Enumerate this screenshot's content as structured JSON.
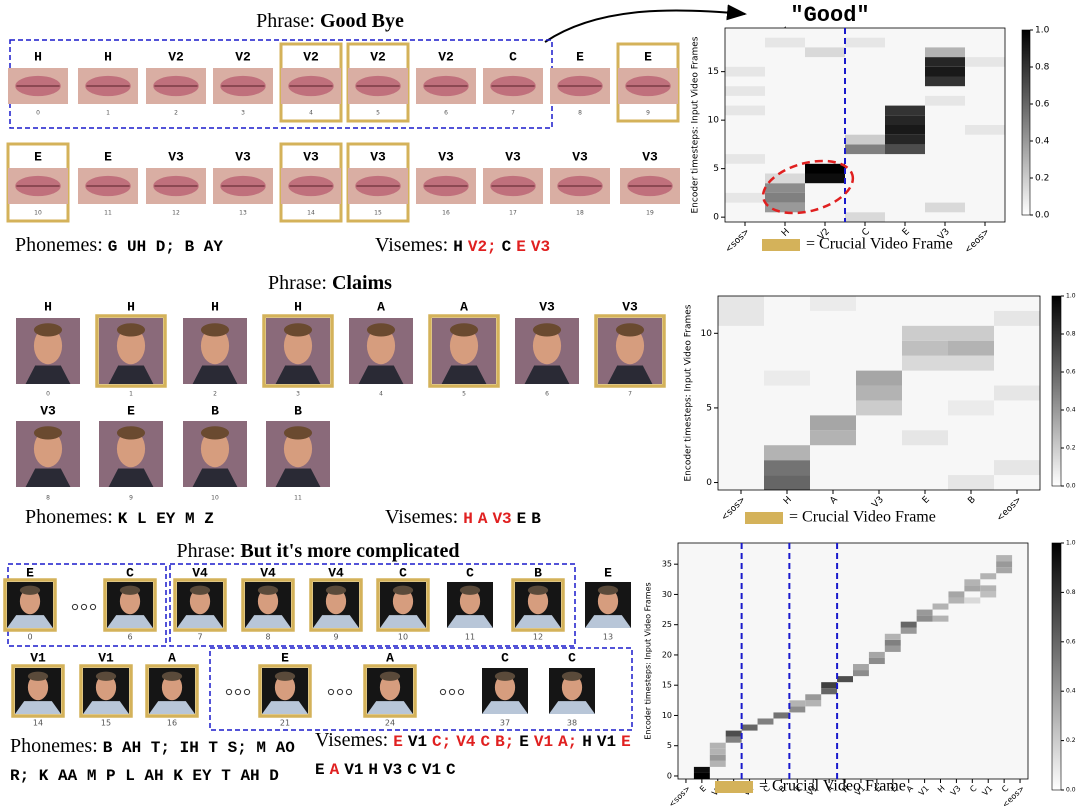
{
  "panels": [
    {
      "phrase_label": "Phrase:",
      "phrase": "Good Bye",
      "frame_rows": [
        [
          {
            "viseme": "H",
            "index": 0,
            "crucial": false
          },
          {
            "viseme": "H",
            "index": 1,
            "crucial": false
          },
          {
            "viseme": "V2",
            "index": 2,
            "crucial": false
          },
          {
            "viseme": "V2",
            "index": 3,
            "crucial": false
          },
          {
            "viseme": "V2",
            "index": 4,
            "crucial": true
          },
          {
            "viseme": "V2",
            "index": 5,
            "crucial": true
          },
          {
            "viseme": "V2",
            "index": 6,
            "crucial": false
          },
          {
            "viseme": "C",
            "index": 7,
            "crucial": false
          },
          {
            "viseme": "E",
            "index": 8,
            "crucial": false
          },
          {
            "viseme": "E",
            "index": 9,
            "crucial": true
          }
        ],
        [
          {
            "viseme": "E",
            "index": 10,
            "crucial": true
          },
          {
            "viseme": "E",
            "index": 11,
            "crucial": false
          },
          {
            "viseme": "V3",
            "index": 12,
            "crucial": false
          },
          {
            "viseme": "V3",
            "index": 13,
            "crucial": false
          },
          {
            "viseme": "V3",
            "index": 14,
            "crucial": true
          },
          {
            "viseme": "V3",
            "index": 15,
            "crucial": true
          },
          {
            "viseme": "V3",
            "index": 16,
            "crucial": false
          },
          {
            "viseme": "V3",
            "index": 17,
            "crucial": false
          },
          {
            "viseme": "V3",
            "index": 18,
            "crucial": false
          },
          {
            "viseme": "V3",
            "index": 19,
            "crucial": false
          }
        ]
      ],
      "phonemes_label": "Phonemes:",
      "phonemes": "G UH D; B AY",
      "visemes_label": "Visemes:",
      "visemes": [
        {
          "text": "H",
          "color": "#000000"
        },
        {
          "text": "V2;",
          "color": "#e02020"
        },
        {
          "text": "C",
          "color": "#000000"
        },
        {
          "text": "E",
          "color": "#e02020"
        },
        {
          "text": "V3",
          "color": "#e02020"
        }
      ],
      "heatmap": {
        "y_label": "Encoder timesteps: Input Video Frames",
        "columns": [
          "<sos>",
          "H",
          "V2",
          "C",
          "E",
          "V3",
          "<eos>"
        ],
        "ylim": [
          -0.5,
          19.5
        ],
        "yticks": [
          0,
          5,
          10,
          15
        ],
        "clim": [
          0,
          1
        ],
        "colorbar_ticks": [
          {
            "value": 0,
            "label": "0.0"
          },
          {
            "value": 0.2,
            "label": "0.2"
          },
          {
            "value": 0.4,
            "label": "0.4"
          },
          {
            "value": 0.6,
            "label": "0.6"
          },
          {
            "value": 0.8,
            "label": "0.8"
          },
          {
            "value": 1,
            "label": "1.0"
          }
        ],
        "legend": "= Crucial Video Frame",
        "annotation": "\"Good\"",
        "cells": [
          [
            1,
            1,
            0.4
          ],
          [
            2,
            1,
            0.5
          ],
          [
            3,
            1,
            0.45
          ],
          [
            4,
            2,
            0.95
          ],
          [
            5,
            2,
            1.0
          ],
          [
            4,
            1,
            0.15
          ],
          [
            7,
            3,
            0.5
          ],
          [
            7,
            4,
            0.7
          ],
          [
            8,
            4,
            0.85
          ],
          [
            9,
            4,
            0.9
          ],
          [
            10,
            4,
            0.85
          ],
          [
            11,
            4,
            0.8
          ],
          [
            8,
            3,
            0.2
          ],
          [
            14,
            5,
            0.8
          ],
          [
            15,
            5,
            0.9
          ],
          [
            16,
            5,
            0.85
          ],
          [
            17,
            5,
            0.3
          ],
          [
            13,
            0,
            0.1
          ],
          [
            15,
            0,
            0.1
          ],
          [
            17,
            2,
            0.15
          ],
          [
            18,
            3,
            0.1
          ],
          [
            16,
            6,
            0.1
          ],
          [
            2,
            0,
            0.1
          ],
          [
            6,
            0,
            0.1
          ],
          [
            9,
            6,
            0.1
          ],
          [
            12,
            5,
            0.1
          ],
          [
            0,
            3,
            0.15
          ],
          [
            1,
            5,
            0.15
          ],
          [
            18,
            1,
            0.1
          ],
          [
            11,
            0,
            0.1
          ]
        ]
      }
    },
    {
      "phrase_label": "Phrase:",
      "phrase": "Claims",
      "frame_rows": [
        [
          {
            "viseme": "H",
            "index": 0,
            "crucial": false
          },
          {
            "viseme": "H",
            "index": 1,
            "crucial": true
          },
          {
            "viseme": "H",
            "index": 2,
            "crucial": false
          },
          {
            "viseme": "H",
            "index": 3,
            "crucial": true
          },
          {
            "viseme": "A",
            "index": 4,
            "crucial": false
          },
          {
            "viseme": "A",
            "index": 5,
            "crucial": true
          },
          {
            "viseme": "V3",
            "index": 6,
            "crucial": false
          },
          {
            "viseme": "V3",
            "index": 7,
            "crucial": true
          }
        ],
        [
          {
            "viseme": "V3",
            "index": 8,
            "crucial": false
          },
          {
            "viseme": "E",
            "index": 9,
            "crucial": false
          },
          {
            "viseme": "B",
            "index": 10,
            "crucial": false
          },
          {
            "viseme": "B",
            "index": 11,
            "crucial": false
          }
        ]
      ],
      "phonemes_label": "Phonemes:",
      "phonemes": "K L EY M Z",
      "visemes_label": "Visemes:",
      "visemes": [
        {
          "text": "H",
          "color": "#e02020"
        },
        {
          "text": "A",
          "color": "#e02020"
        },
        {
          "text": "V3",
          "color": "#e02020"
        },
        {
          "text": "E",
          "color": "#000000"
        },
        {
          "text": "B",
          "color": "#000000"
        }
      ],
      "heatmap": {
        "y_label": "Encoder timesteps: Input Video Frames",
        "columns": [
          "<sos>",
          "H",
          "A",
          "V3",
          "E",
          "B",
          "<eos>"
        ],
        "ylim": [
          -0.5,
          12.5
        ],
        "yticks": [
          0,
          5,
          10
        ],
        "clim": [
          0,
          1
        ],
        "colorbar_ticks": [
          {
            "value": 0,
            "label": "0.0"
          },
          {
            "value": 0.2,
            "label": "0.2"
          },
          {
            "value": 0.4,
            "label": "0.4"
          },
          {
            "value": 0.6,
            "label": "0.6"
          },
          {
            "value": 0.8,
            "label": "0.8"
          },
          {
            "value": 1,
            "label": "1.0"
          }
        ],
        "legend": "= Crucial Video Frame",
        "cells": [
          [
            0,
            1,
            0.6
          ],
          [
            1,
            1,
            0.55
          ],
          [
            2,
            1,
            0.3
          ],
          [
            3,
            2,
            0.3
          ],
          [
            4,
            2,
            0.35
          ],
          [
            5,
            3,
            0.2
          ],
          [
            6,
            3,
            0.3
          ],
          [
            7,
            3,
            0.35
          ],
          [
            8,
            4,
            0.15
          ],
          [
            9,
            4,
            0.25
          ],
          [
            10,
            4,
            0.2
          ],
          [
            10,
            5,
            0.2
          ],
          [
            9,
            5,
            0.3
          ],
          [
            8,
            5,
            0.15
          ],
          [
            11,
            6,
            0.1
          ],
          [
            12,
            0,
            0.1
          ],
          [
            11,
            0,
            0.1
          ],
          [
            3,
            4,
            0.1
          ],
          [
            0,
            5,
            0.1
          ],
          [
            6,
            6,
            0.1
          ],
          [
            1,
            6,
            0.1
          ],
          [
            12,
            2,
            0.08
          ],
          [
            5,
            5,
            0.08
          ],
          [
            7,
            1,
            0.08
          ]
        ]
      }
    },
    {
      "phrase_label": "Phrase:",
      "phrase": "But it's more complicated",
      "frame_rows": [
        [
          {
            "viseme": "E",
            "index": 0,
            "crucial": true
          },
          {
            "viseme": "C",
            "index": 6,
            "crucial": true
          },
          {
            "viseme": "V4",
            "index": 7,
            "crucial": true
          },
          {
            "viseme": "V4",
            "index": 8,
            "crucial": true
          },
          {
            "viseme": "V4",
            "index": 9,
            "crucial": true
          },
          {
            "viseme": "C",
            "index": 10,
            "crucial": true
          },
          {
            "viseme": "C",
            "index": 11,
            "crucial": false
          },
          {
            "viseme": "B",
            "index": 12,
            "crucial": true
          },
          {
            "viseme": "E",
            "index": 13,
            "crucial": false
          }
        ],
        [
          {
            "viseme": "V1",
            "index": 14,
            "crucial": true
          },
          {
            "viseme": "V1",
            "index": 15,
            "crucial": true
          },
          {
            "viseme": "A",
            "index": 16,
            "crucial": true
          },
          {
            "viseme": "E",
            "index": 21,
            "crucial": true
          },
          {
            "viseme": "A",
            "index": 24,
            "crucial": true
          },
          {
            "viseme": "C",
            "index": 37,
            "crucial": false
          },
          {
            "viseme": "C",
            "index": 38,
            "crucial": false
          }
        ]
      ],
      "phonemes_label": "Phonemes:",
      "phonemes": "B AH T; IH T S; M AO R; K AA M P L AH K EY T AH D",
      "visemes_label": "Visemes:",
      "visemes": [
        {
          "text": "E",
          "color": "#e02020"
        },
        {
          "text": "V1",
          "color": "#000000"
        },
        {
          "text": "C;",
          "color": "#e02020"
        },
        {
          "text": "V4",
          "color": "#e02020"
        },
        {
          "text": "C",
          "color": "#e02020"
        },
        {
          "text": "B;",
          "color": "#e02020"
        },
        {
          "text": "E",
          "color": "#000000"
        },
        {
          "text": "V1",
          "color": "#e02020"
        },
        {
          "text": "A;",
          "color": "#e02020"
        },
        {
          "text": "H",
          "color": "#000000"
        },
        {
          "text": "V1",
          "color": "#000000"
        },
        {
          "text": "E",
          "color": "#e02020"
        },
        {
          "text": "E",
          "color": "#000000"
        },
        {
          "text": "A",
          "color": "#e02020"
        },
        {
          "text": "V1",
          "color": "#000000"
        },
        {
          "text": "H",
          "color": "#000000"
        },
        {
          "text": "V3",
          "color": "#000000"
        },
        {
          "text": "C",
          "color": "#000000"
        },
        {
          "text": "V1",
          "color": "#000000"
        },
        {
          "text": "C",
          "color": "#000000"
        }
      ],
      "heatmap": {
        "y_label": "Encoder timesteps: Input Video Frames",
        "columns": [
          "<sos>",
          "E",
          "V1",
          "C",
          "V4",
          "C",
          "B",
          "E",
          "V1",
          "A",
          "H",
          "V1",
          "E",
          "E",
          "A",
          "V1",
          "H",
          "V3",
          "C",
          "V1",
          "C",
          "<eos>"
        ],
        "ylim": [
          -0.5,
          38.5
        ],
        "yticks": [
          0,
          5,
          10,
          15,
          20,
          25,
          30,
          35
        ],
        "clim": [
          0,
          1
        ],
        "colorbar_ticks": [
          {
            "value": 0,
            "label": "0.0"
          },
          {
            "value": 0.2,
            "label": "0.2"
          },
          {
            "value": 0.4,
            "label": "0.4"
          },
          {
            "value": 0.6,
            "label": "0.6"
          },
          {
            "value": 0.8,
            "label": "0.8"
          },
          {
            "value": 1,
            "label": "1.0"
          }
        ],
        "legend": "= Crucial Video Frame",
        "cells": [
          [
            0,
            1,
            1.0
          ],
          [
            1,
            1,
            0.95
          ],
          [
            2,
            2,
            0.3
          ],
          [
            3,
            2,
            0.4
          ],
          [
            4,
            2,
            0.3
          ],
          [
            5,
            2,
            0.3
          ],
          [
            6,
            3,
            0.5
          ],
          [
            7,
            3,
            0.7
          ],
          [
            8,
            4,
            0.6
          ],
          [
            9,
            5,
            0.5
          ],
          [
            10,
            6,
            0.55
          ],
          [
            11,
            7,
            0.45
          ],
          [
            12,
            7,
            0.3
          ],
          [
            12,
            8,
            0.3
          ],
          [
            13,
            8,
            0.4
          ],
          [
            14,
            9,
            0.6
          ],
          [
            15,
            9,
            0.75
          ],
          [
            16,
            10,
            0.7
          ],
          [
            17,
            11,
            0.45
          ],
          [
            18,
            11,
            0.35
          ],
          [
            19,
            12,
            0.45
          ],
          [
            20,
            12,
            0.35
          ],
          [
            21,
            13,
            0.4
          ],
          [
            22,
            13,
            0.5
          ],
          [
            23,
            13,
            0.3
          ],
          [
            24,
            14,
            0.4
          ],
          [
            25,
            14,
            0.6
          ],
          [
            26,
            15,
            0.45
          ],
          [
            27,
            15,
            0.4
          ],
          [
            26,
            16,
            0.3
          ],
          [
            28,
            16,
            0.3
          ],
          [
            29,
            17,
            0.3
          ],
          [
            30,
            17,
            0.35
          ],
          [
            31,
            18,
            0.35
          ],
          [
            32,
            18,
            0.3
          ],
          [
            33,
            19,
            0.3
          ],
          [
            34,
            20,
            0.35
          ],
          [
            35,
            20,
            0.4
          ],
          [
            36,
            20,
            0.3
          ],
          [
            30,
            19,
            0.25
          ],
          [
            31,
            19,
            0.3
          ],
          [
            29,
            18,
            0.15
          ]
        ]
      }
    }
  ]
}
